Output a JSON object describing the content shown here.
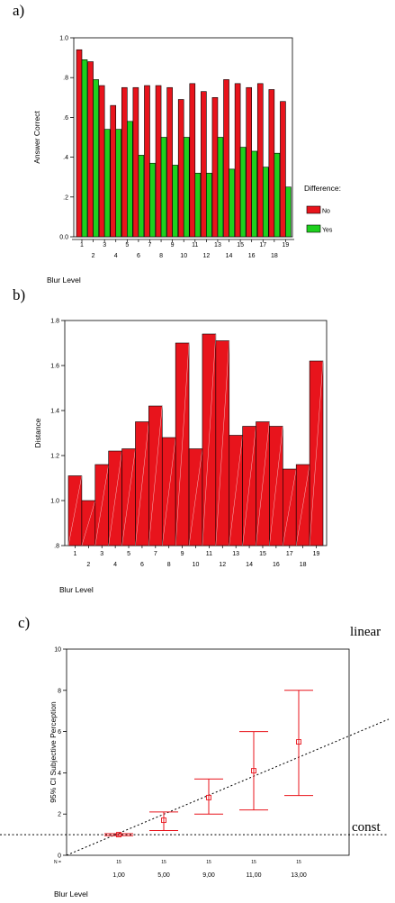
{
  "panels": {
    "a": "a)",
    "b": "b)",
    "c": "c)"
  },
  "chart_data": [
    {
      "type": "bar",
      "ylabel": "Answer Correct",
      "xlabel": "Blur  Level",
      "ylim": [
        0,
        1.0
      ],
      "yticks": [
        "0.0",
        ".2",
        ".4",
        ".6",
        ".8",
        "1.0"
      ],
      "categories": [
        "1",
        "2",
        "3",
        "4",
        "5",
        "6",
        "7",
        "8",
        "9",
        "10",
        "11",
        "12",
        "13",
        "14",
        "15",
        "16",
        "17",
        "18",
        "19"
      ],
      "legend": {
        "title": "Difference:",
        "position": "right"
      },
      "colors": {
        "No": "#e8141c",
        "Yes": "#1ed01e"
      },
      "series": [
        {
          "name": "No",
          "values": [
            0.94,
            0.88,
            0.76,
            0.66,
            0.75,
            0.75,
            0.76,
            0.76,
            0.75,
            0.69,
            0.77,
            0.73,
            0.7,
            0.79,
            0.77,
            0.75,
            0.77,
            0.74,
            0.68
          ]
        },
        {
          "name": "Yes",
          "values": [
            0.89,
            0.79,
            0.54,
            0.54,
            0.58,
            0.41,
            0.37,
            0.5,
            0.36,
            0.5,
            0.32,
            0.32,
            0.5,
            0.34,
            0.45,
            0.43,
            0.35,
            0.42,
            0.25
          ]
        }
      ]
    },
    {
      "type": "bar",
      "ylabel": "Distance",
      "xlabel": "Blur Level",
      "ylim": [
        0.8,
        1.8
      ],
      "yticks": [
        ".8",
        "1.0",
        "1.2",
        "1.4",
        "1.6",
        "1.8"
      ],
      "categories": [
        "1",
        "2",
        "3",
        "4",
        "5",
        "6",
        "7",
        "8",
        "9",
        "10",
        "11",
        "12",
        "13",
        "14",
        "15",
        "16",
        "17",
        "18",
        "19"
      ],
      "color": "#e8141c",
      "values": [
        1.11,
        1.0,
        1.16,
        1.22,
        1.23,
        1.35,
        1.42,
        1.28,
        1.7,
        1.23,
        1.74,
        1.71,
        1.29,
        1.33,
        1.35,
        1.33,
        1.14,
        1.16,
        1.62
      ]
    },
    {
      "type": "errorbar",
      "ylabel": "95% CI Subjective Perception",
      "xlabel": "Blur Level",
      "ylim": [
        0,
        10
      ],
      "yticks": [
        "0",
        "2",
        "4",
        "6",
        "8",
        "10"
      ],
      "categories": [
        "1,00",
        "5,00",
        "9,00",
        "11,00",
        "13,00"
      ],
      "n_label": "N =",
      "n_values": [
        "15",
        "15",
        "15",
        "15",
        "15"
      ],
      "means": [
        1.0,
        1.7,
        2.8,
        4.1,
        5.5
      ],
      "lower": [
        0.95,
        1.2,
        2.0,
        2.2,
        2.9
      ],
      "upper": [
        1.05,
        2.1,
        3.7,
        6.0,
        8.0
      ],
      "color": "#e8141c",
      "lines": [
        {
          "label": "linear",
          "style": "dotted",
          "from": 0,
          "to": 6.6
        },
        {
          "label": "const",
          "style": "dotted",
          "value": 1.0
        }
      ]
    }
  ]
}
